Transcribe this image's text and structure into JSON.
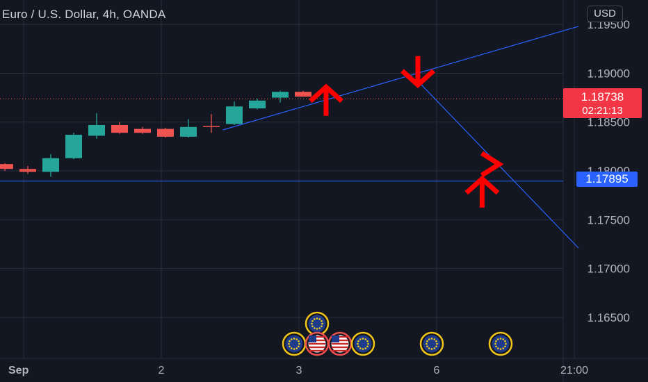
{
  "header": {
    "title": "Euro / U.S. Dollar, 4h, OANDA",
    "currency_button": "USD"
  },
  "price_labels": {
    "last_price": "1.18738",
    "countdown": "02:21:13",
    "line_price": "1.17895"
  },
  "colors": {
    "background": "#131722",
    "grid": "#2a2e39",
    "axis_text": "#b2b5be",
    "up_candle": "#26a69a",
    "down_candle": "#ef5350",
    "trendline": "#2962ff",
    "arrow": "#ff0000",
    "last_price_bg": "#f23645",
    "line_price_bg": "#2962ff"
  },
  "chart_data": {
    "type": "candlestick",
    "title": "Euro / U.S. Dollar, 4h, OANDA",
    "y_axis": {
      "ticks": [
        "1.19500",
        "1.19000",
        "1.18500",
        "1.18000",
        "1.17500",
        "1.17000",
        "1.16500"
      ],
      "tick_values": [
        1.195,
        1.19,
        1.185,
        1.18,
        1.175,
        1.17,
        1.165
      ],
      "range": [
        1.1608,
        1.1975
      ],
      "side": "right"
    },
    "x_axis": {
      "ticks": [
        "Sep",
        "2",
        "3",
        "6",
        "21:00"
      ],
      "tick_index": [
        0,
        6,
        12,
        18,
        24
      ]
    },
    "grid": true,
    "candles": [
      {
        "o": 1.1807,
        "h": 1.1808,
        "l": 1.18,
        "c": 1.1802
      },
      {
        "o": 1.1802,
        "h": 1.1805,
        "l": 1.1797,
        "c": 1.1799
      },
      {
        "o": 1.1799,
        "h": 1.1817,
        "l": 1.1794,
        "c": 1.1813
      },
      {
        "o": 1.1813,
        "h": 1.1839,
        "l": 1.1812,
        "c": 1.1837
      },
      {
        "o": 1.1836,
        "h": 1.1859,
        "l": 1.1833,
        "c": 1.1847
      },
      {
        "o": 1.1847,
        "h": 1.185,
        "l": 1.1838,
        "c": 1.1839
      },
      {
        "o": 1.1843,
        "h": 1.1845,
        "l": 1.1838,
        "c": 1.1839
      },
      {
        "o": 1.1843,
        "h": 1.1844,
        "l": 1.1834,
        "c": 1.1835
      },
      {
        "o": 1.1835,
        "h": 1.1853,
        "l": 1.1834,
        "c": 1.1845
      },
      {
        "o": 1.1846,
        "h": 1.1858,
        "l": 1.1839,
        "c": 1.1845
      },
      {
        "o": 1.1848,
        "h": 1.1871,
        "l": 1.1847,
        "c": 1.1866
      },
      {
        "o": 1.1864,
        "h": 1.1874,
        "l": 1.1863,
        "c": 1.1872
      },
      {
        "o": 1.1875,
        "h": 1.1882,
        "l": 1.187,
        "c": 1.1881
      },
      {
        "o": 1.1881,
        "h": 1.1882,
        "l": 1.1876,
        "c": 1.1876
      }
    ],
    "last_price": 1.18738,
    "horizontal_line": 1.17895,
    "trendlines": [
      {
        "from": [
          9.5,
          1.1842
        ],
        "to": [
          25.0,
          1.1948
        ]
      },
      {
        "from": [
          18.0,
          1.1892
        ],
        "to": [
          25.0,
          1.1721
        ]
      }
    ],
    "arrows": [
      {
        "direction": "up",
        "at": [
          14.0,
          1.1876
        ]
      },
      {
        "direction": "down",
        "at": [
          18.0,
          1.1898
        ]
      },
      {
        "direction": "right",
        "at": [
          21.3,
          1.1804
        ]
      },
      {
        "direction": "up",
        "at": [
          20.8,
          1.1782
        ]
      }
    ],
    "event_markers": [
      {
        "kind": "eu-flag",
        "index": 14.0,
        "row": 1
      },
      {
        "kind": "eu-flag",
        "index": 13.0,
        "row": 0
      },
      {
        "kind": "us-flag",
        "index": 14.0,
        "row": 0
      },
      {
        "kind": "us-flag",
        "index": 15.0,
        "row": 0
      },
      {
        "kind": "eu-flag",
        "index": 16.0,
        "row": 0
      },
      {
        "kind": "eu-flag",
        "index": 19.0,
        "row": 0
      },
      {
        "kind": "eu-flag",
        "index": 22.0,
        "row": 0
      }
    ]
  }
}
